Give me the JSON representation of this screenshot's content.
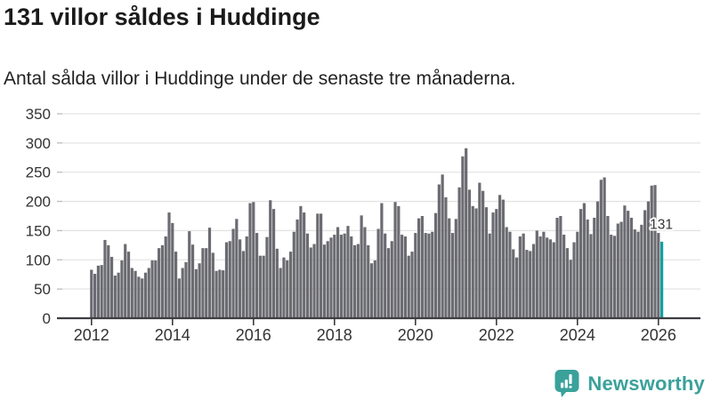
{
  "header": {
    "title": "131 villor såldes i Huddinge",
    "subtitle": "Antal sålda villor i Huddinge under de senaste tre månaderna."
  },
  "chart_data": {
    "type": "bar",
    "title": "131 villor såldes i Huddinge",
    "subtitle": "Antal sålda villor i Huddinge under de senaste tre månaderna.",
    "frequency": "monthly",
    "x_start": "2012-01",
    "x_end": "2026-02",
    "ylim": [
      0,
      350
    ],
    "grid": true,
    "y_ticks": [
      0,
      50,
      100,
      150,
      200,
      250,
      300,
      350
    ],
    "x_tick_labels": [
      "2012",
      "2014",
      "2016",
      "2018",
      "2020",
      "2022",
      "2024",
      "2026"
    ],
    "x_tick_years": [
      2012,
      2014,
      2016,
      2018,
      2020,
      2022,
      2024,
      2026
    ],
    "bar_color": "#6b6b72",
    "highlight_color": "#14a0a0",
    "grid_color": "#e4e4e4",
    "axis_color": "#3d3d42",
    "label_color": "#333333",
    "annotation": "131",
    "highlight_last": true,
    "values": [
      83,
      76,
      90,
      91,
      134,
      125,
      105,
      73,
      78,
      99,
      127,
      114,
      86,
      81,
      71,
      68,
      78,
      86,
      99,
      99,
      120,
      125,
      140,
      181,
      163,
      114,
      68,
      86,
      96,
      149,
      126,
      84,
      94,
      120,
      120,
      155,
      112,
      81,
      83,
      82,
      130,
      132,
      153,
      170,
      135,
      115,
      140,
      197,
      199,
      146,
      107,
      107,
      139,
      202,
      187,
      119,
      86,
      104,
      99,
      114,
      148,
      169,
      192,
      181,
      145,
      121,
      127,
      179,
      179,
      126,
      132,
      138,
      143,
      156,
      143,
      145,
      158,
      140,
      125,
      127,
      176,
      156,
      125,
      94,
      99,
      153,
      197,
      145,
      120,
      132,
      199,
      192,
      143,
      140,
      107,
      114,
      146,
      171,
      175,
      146,
      145,
      148,
      180,
      229,
      246,
      207,
      171,
      146,
      170,
      224,
      277,
      291,
      220,
      192,
      188,
      232,
      218,
      190,
      145,
      181,
      187,
      211,
      203,
      156,
      148,
      118,
      104,
      140,
      145,
      117,
      115,
      127,
      150,
      140,
      148,
      138,
      135,
      130,
      172,
      175,
      143,
      120,
      100,
      130,
      148,
      187,
      197,
      169,
      144,
      172,
      200,
      237,
      241,
      175,
      143,
      141,
      162,
      165,
      193,
      184,
      172,
      152,
      148,
      160,
      185,
      200,
      227,
      228,
      146,
      131
    ]
  },
  "footer": {
    "brand": "Newsworthy",
    "brand_color": "#3aa19b",
    "icon": "newsworthy-speech-bubble-chart-icon"
  }
}
